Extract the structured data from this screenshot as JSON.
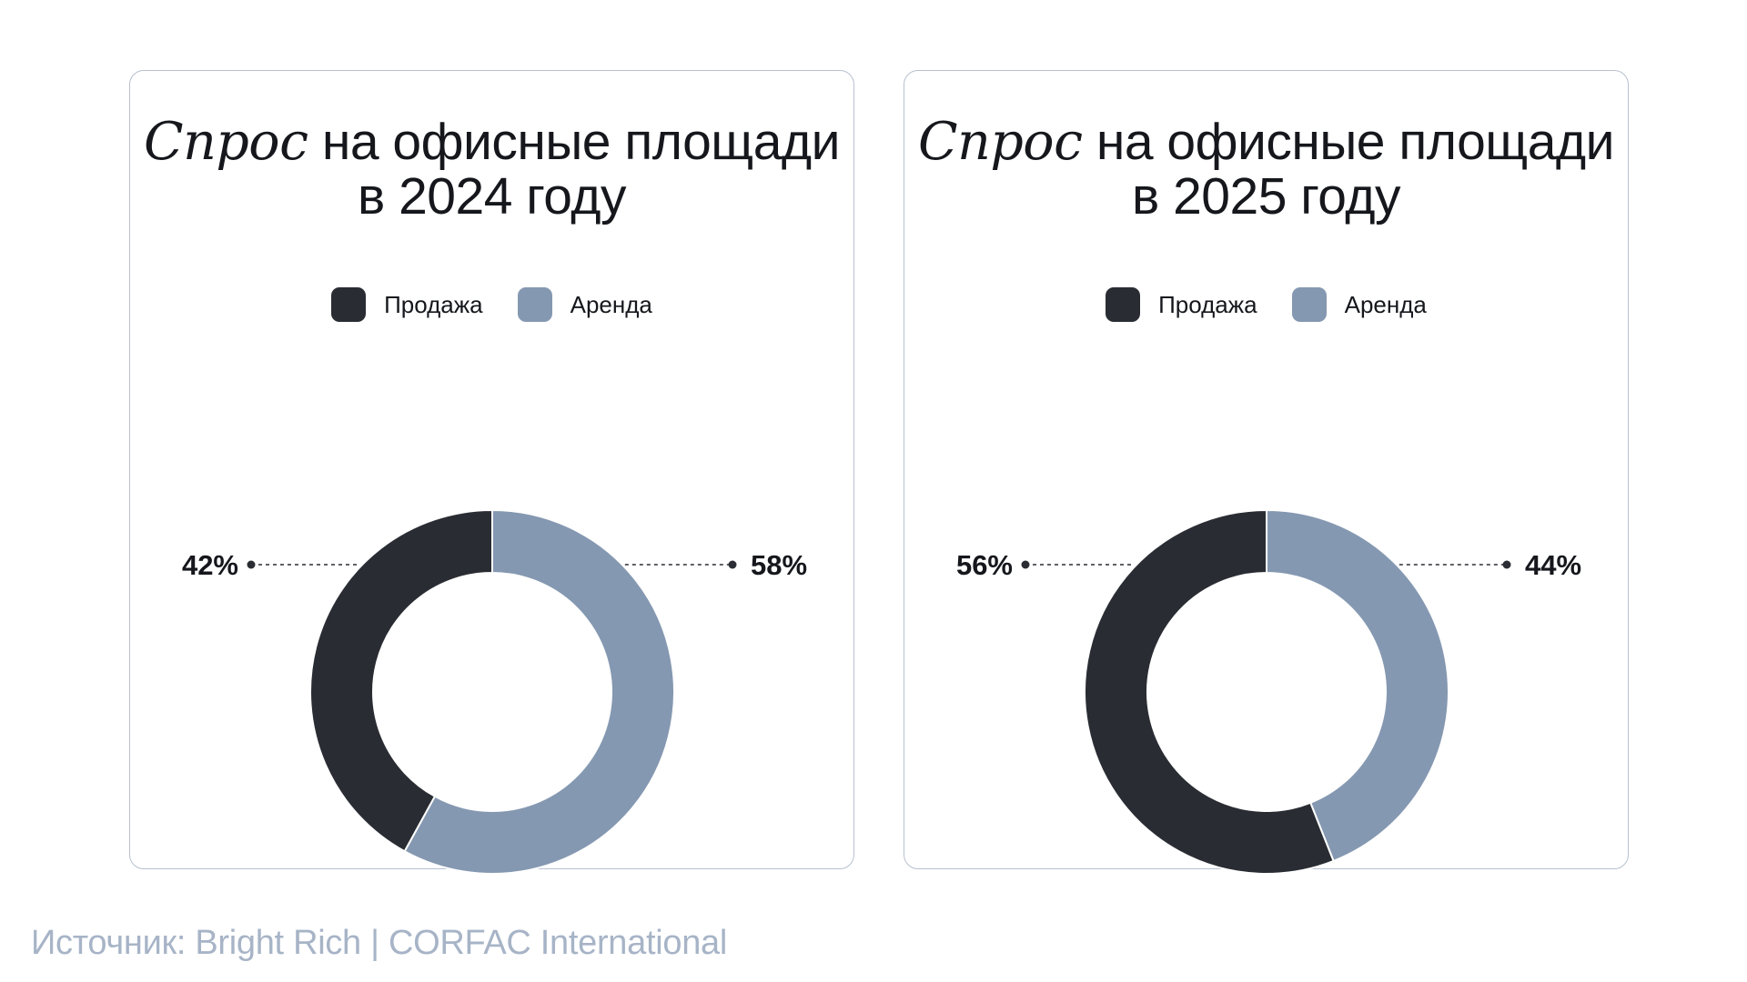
{
  "colors": {
    "sale": "#292d33",
    "rent": "#8598b1",
    "border": "#b7c1cf",
    "source_text": "#a7b4c7"
  },
  "legend": {
    "sale_label": "Продажа",
    "rent_label": "Аренда"
  },
  "source": "Источник: Bright Rich | CORFAC International",
  "chart_data": [
    {
      "type": "pie",
      "title": "Спрос на офисные площади в 2024 году",
      "title_emphasis": "Спрос",
      "title_rest": " на офисные площади",
      "title_line2": "в 2024 году",
      "series": [
        {
          "name": "Продажа",
          "value": 42,
          "label": "42%"
        },
        {
          "name": "Аренда",
          "value": 58,
          "label": "58%"
        }
      ],
      "legend_position": "top"
    },
    {
      "type": "pie",
      "title": "Спрос на офисные площади в 2025 году",
      "title_emphasis": "Спрос",
      "title_rest": " на офисные площади",
      "title_line2": "в 2025 году",
      "series": [
        {
          "name": "Продажа",
          "value": 56,
          "label": "56%"
        },
        {
          "name": "Аренда",
          "value": 44,
          "label": "44%"
        }
      ],
      "legend_position": "top"
    }
  ]
}
